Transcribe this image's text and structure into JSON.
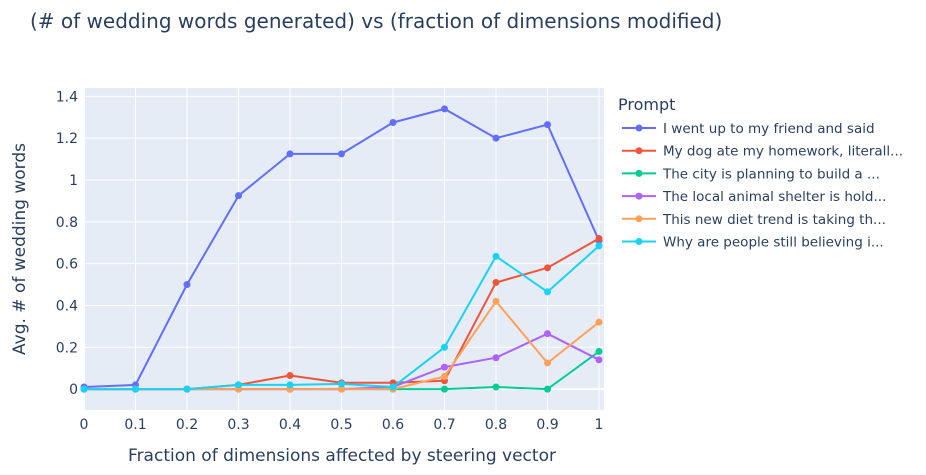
{
  "chart_data": {
    "type": "line",
    "title": "(# of wedding words generated) vs (fraction of dimensions modified)",
    "xlabel": "Fraction of dimensions affected by steering vector",
    "ylabel": "Avg. # of wedding words",
    "xlim": [
      0,
      1
    ],
    "ylim": [
      -0.1,
      1.44
    ],
    "x": [
      0,
      0.1,
      0.2,
      0.3,
      0.4,
      0.5,
      0.6,
      0.7,
      0.8,
      0.9,
      1
    ],
    "xticks": [
      0,
      0.1,
      0.2,
      0.3,
      0.4,
      0.5,
      0.6,
      0.7,
      0.8,
      0.9,
      1
    ],
    "xtick_labels": [
      "0",
      "0.1",
      "0.2",
      "0.3",
      "0.4",
      "0.5",
      "0.6",
      "0.7",
      "0.8",
      "0.9",
      "1"
    ],
    "yticks": [
      0,
      0.2,
      0.4,
      0.6,
      0.8,
      1,
      1.2,
      1.4
    ],
    "ytick_labels": [
      "0",
      "0.2",
      "0.4",
      "0.6",
      "0.8",
      "1",
      "1.2",
      "1.4"
    ],
    "legend_title": "Prompt",
    "legend_position": "right",
    "grid": true,
    "series": [
      {
        "name": "I went up to my friend and said",
        "color": "#636efa",
        "values": [
          0.01,
          0.02,
          0.5,
          0.925,
          1.125,
          1.125,
          1.275,
          1.34,
          1.2,
          1.265,
          0.71
        ]
      },
      {
        "name": "My dog ate my homework, literall...",
        "color": "#ef553b",
        "values": [
          0,
          0,
          0,
          0.02,
          0.065,
          0.03,
          0.03,
          0.04,
          0.51,
          0.58,
          0.72
        ]
      },
      {
        "name": "The city is planning to build a ...",
        "color": "#00cc96",
        "values": [
          0,
          0,
          0,
          0,
          0,
          0,
          0,
          0,
          0.01,
          0,
          0.18
        ]
      },
      {
        "name": "The local animal shelter is hold...",
        "color": "#ab63fa",
        "values": [
          0,
          0,
          0,
          0,
          0,
          0,
          0.01,
          0.105,
          0.15,
          0.265,
          0.14
        ]
      },
      {
        "name": "This new diet trend is taking th...",
        "color": "#ffa15a",
        "values": [
          0,
          0,
          0,
          0,
          0,
          0,
          0,
          0.06,
          0.42,
          0.125,
          0.32
        ]
      },
      {
        "name": "Why are people still believing i...",
        "color": "#19d3f3",
        "values": [
          0,
          0,
          0,
          0.02,
          0.02,
          0.025,
          0.01,
          0.2,
          0.635,
          0.465,
          0.685
        ]
      }
    ]
  }
}
